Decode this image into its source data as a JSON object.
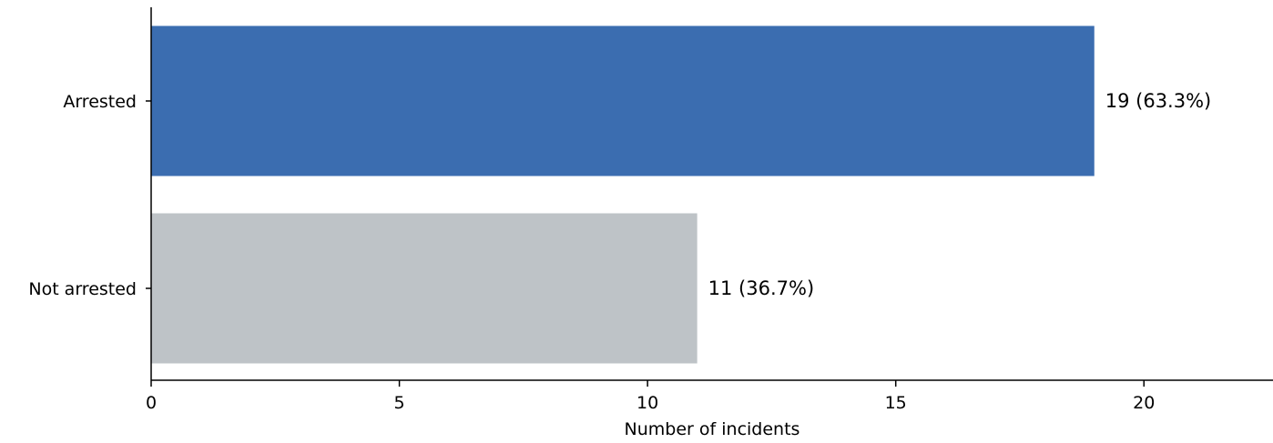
{
  "chart_data": {
    "type": "bar",
    "orientation": "horizontal",
    "title": "",
    "xlabel": "Number of incidents",
    "ylabel": "",
    "categories": [
      "Arrested",
      "Not arrested"
    ],
    "values": [
      19,
      11
    ],
    "value_labels": [
      "19 (63.3%)",
      "11 (36.7%)"
    ],
    "colors": [
      "#3b6db0",
      "#bec3c7"
    ],
    "xlim": [
      0,
      22.6
    ],
    "xticks": [
      0,
      5,
      10,
      15,
      20
    ],
    "xtick_labels": [
      "0",
      "5",
      "10",
      "15",
      "20"
    ],
    "grid": false,
    "legend": "none"
  }
}
